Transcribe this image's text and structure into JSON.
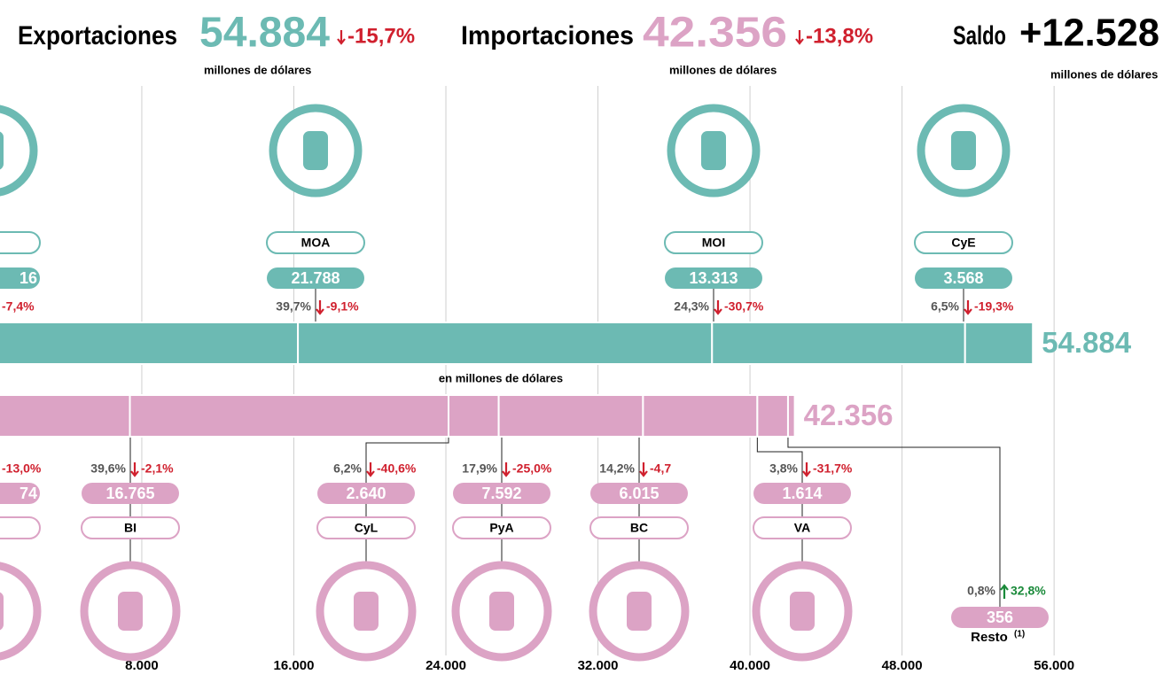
{
  "header": {
    "exports": {
      "label": "Exportaciones",
      "value": "54.884",
      "change": "-15,7%",
      "unit": "millones de dólares"
    },
    "imports": {
      "label": "Importaciones",
      "value": "42.356",
      "change": "-13,8%",
      "unit": "millones de dólares"
    },
    "balance": {
      "label": "Saldo",
      "value": "+12.528",
      "unit": "millones de dólares"
    }
  },
  "chart_data": {
    "type": "stacked-bar",
    "axis_label": "en millones de dólares",
    "xlim": [
      540,
      61730
    ],
    "xticks": [
      {
        "value": 8000,
        "label": "8.000"
      },
      {
        "value": 16000,
        "label": "16.000"
      },
      {
        "value": 24000,
        "label": "24.000"
      },
      {
        "value": 32000,
        "label": "32.000"
      },
      {
        "value": 40000,
        "label": "40.000"
      },
      {
        "value": 48000,
        "label": "48.000"
      },
      {
        "value": 56000,
        "label": "56.000"
      }
    ],
    "grid": true,
    "bars": [
      {
        "color": "#6cbab3",
        "total": 54884,
        "total_label": "54.884",
        "segments": [
          {
            "value": 16215,
            "cut_label": "16",
            "change": "-7,4%"
          },
          {
            "name": "MOA",
            "value": 21788,
            "value_label": "21.788",
            "share": "39,7%",
            "change": "-9,1%"
          },
          {
            "name": "MOI",
            "value": 13313,
            "value_label": "13.313",
            "share": "24,3%",
            "change": "-30,7%"
          },
          {
            "name": "CyE",
            "value": 3568,
            "value_label": "3.568",
            "share": "6,5%",
            "change": "-19,3%"
          }
        ]
      },
      {
        "color": "#dca3c5",
        "total": 42356,
        "total_label": "42.356",
        "segments": [
          {
            "value": 7374,
            "cut_label": "74",
            "change": "-13,0%"
          },
          {
            "name": "BI",
            "value": 16765,
            "value_label": "16.765",
            "share": "39,6%",
            "change": "-2,1%"
          },
          {
            "name": "CyL",
            "value": 2640,
            "value_label": "2.640",
            "share": "6,2%",
            "change": "-40,6%"
          },
          {
            "name": "PyA",
            "value": 7592,
            "value_label": "7.592",
            "share": "17,9%",
            "change": "-25,0%"
          },
          {
            "name": "BC",
            "value": 6015,
            "value_label": "6.015",
            "share": "14,2%",
            "change": "-4,7"
          },
          {
            "name": "VA",
            "value": 1614,
            "value_label": "1.614",
            "share": "3,8%",
            "change": "-31,7%"
          },
          {
            "name": "Resto",
            "note": "(1)",
            "value": 356,
            "value_label": "356",
            "share": "0,8%",
            "change": "32,8%"
          }
        ]
      }
    ]
  }
}
